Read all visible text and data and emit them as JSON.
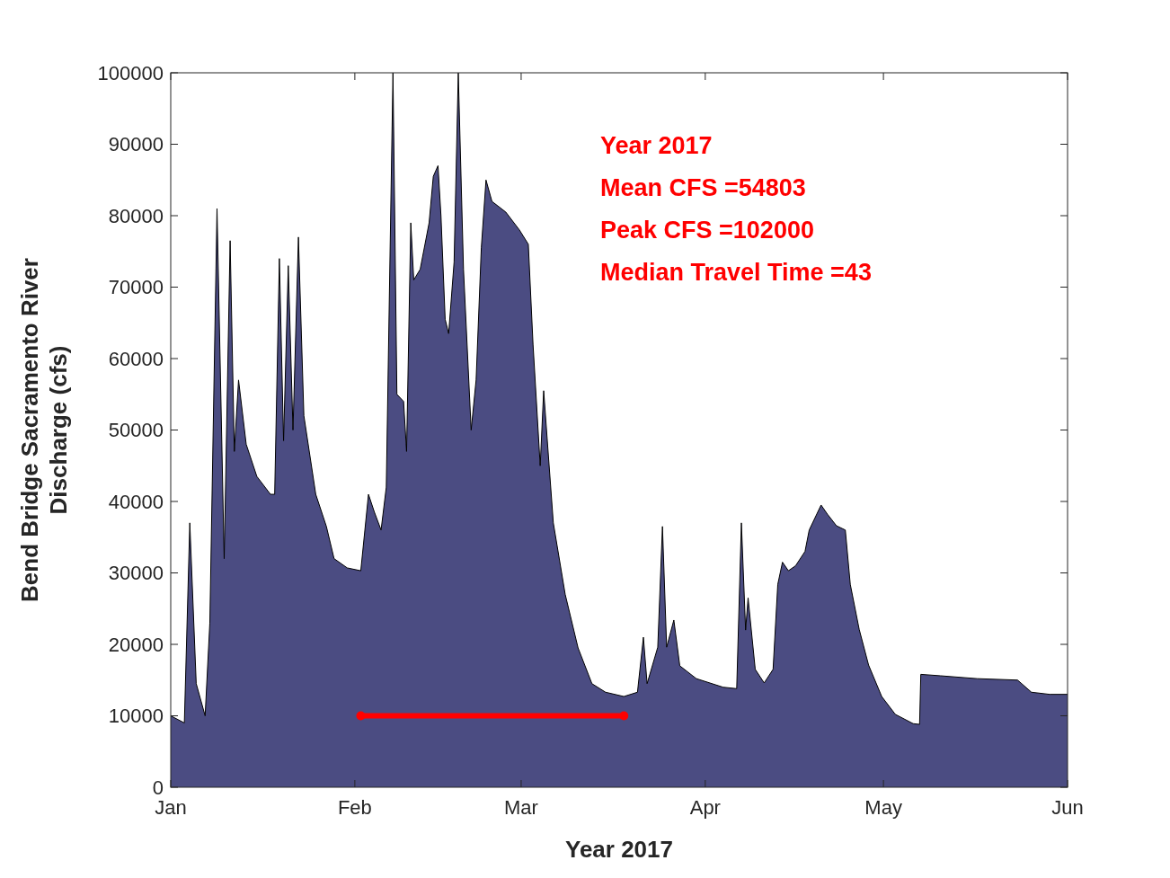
{
  "chart_data": {
    "type": "area",
    "xlabel": "Year 2017",
    "ylabel": "Bend Bridge Sacramento River\nDischarge (cfs)",
    "annotations": [
      "Year 2017",
      "Mean CFS =54803",
      "Peak CFS =102000",
      "Median Travel Time =43"
    ],
    "xlim": [
      "2017-01-01",
      "2017-06-01"
    ],
    "xticks": [
      {
        "value": "2017-01-01",
        "label": "Jan"
      },
      {
        "value": "2017-02-01",
        "label": "Feb"
      },
      {
        "value": "2017-03-01",
        "label": "Mar"
      },
      {
        "value": "2017-04-01",
        "label": "Apr"
      },
      {
        "value": "2017-05-01",
        "label": "May"
      },
      {
        "value": "2017-06-01",
        "label": "Jun"
      }
    ],
    "ylim": [
      0,
      100000
    ],
    "yticks": [
      0,
      10000,
      20000,
      30000,
      40000,
      50000,
      60000,
      70000,
      80000,
      90000,
      100000
    ],
    "series": [
      {
        "color": "#4b4c82",
        "x": [
          "2017-01-01",
          "2017-01-03T07:00",
          "2017-01-04T05:00",
          "2017-01-05T07:00",
          "2017-01-06T19:00",
          "2017-01-07T14:00",
          "2017-01-08T19:00",
          "2017-01-10",
          "2017-01-11",
          "2017-01-11T17:00",
          "2017-01-12T10:00",
          "2017-01-13T17:00",
          "2017-01-15T12:00",
          "2017-01-17T19:00",
          "2017-01-18T12:00",
          "2017-01-19T07:00",
          "2017-01-20",
          "2017-01-20T19:00",
          "2017-01-21T14:00",
          "2017-01-22T12:00",
          "2017-01-23T10:00",
          "2017-01-25T10:00",
          "2017-01-27T05:00",
          "2017-01-28T12:00",
          "2017-01-30T17:00",
          "2017-02-02",
          "2017-02-03T07:00",
          "2017-02-04T07:00",
          "2017-02-05T10:00",
          "2017-02-06T07:00",
          "2017-02-07T10:00",
          "2017-02-08T02:00",
          "2017-02-09T05:00",
          "2017-02-09T17:00",
          "2017-02-10T10:00",
          "2017-02-10T22:00",
          "2017-02-12",
          "2017-02-13T12:00",
          "2017-02-14T05:00",
          "2017-02-15",
          "2017-02-15T12:00",
          "2017-02-16T05:00",
          "2017-02-16T19:00",
          "2017-02-17T17:00",
          "2017-02-18T10:00",
          "2017-02-19T07:00",
          "2017-02-20T14:00",
          "2017-02-21T10:00",
          "2017-02-22T07:00",
          "2017-02-23T02:00",
          "2017-02-24T02:00",
          "2017-02-26T10:00",
          "2017-02-28T17:00",
          "2017-03-02T05:00",
          "2017-03-03",
          "2017-03-04T05:00",
          "2017-03-04T19:00",
          "2017-03-06T10:00",
          "2017-03-08T10:00",
          "2017-03-10T14:00",
          "2017-03-12T22:00",
          "2017-03-15T05:00",
          "2017-03-18T07:00",
          "2017-03-20T14:00",
          "2017-03-21T14:00",
          "2017-03-22T05:00",
          "2017-03-24",
          "2017-03-24T19:00",
          "2017-03-25T12:00",
          "2017-03-26T17:00",
          "2017-03-27T17:00",
          "2017-03-30T12:00",
          "2017-04-04",
          "2017-04-06T07:00",
          "2017-04-07T02:00",
          "2017-04-07T19:00",
          "2017-04-08T05:00",
          "2017-04-09T10:00",
          "2017-04-10T22:00",
          "2017-04-12T10:00",
          "2017-04-13T05:00",
          "2017-04-14",
          "2017-04-15",
          "2017-04-16T05:00",
          "2017-04-17T19:00",
          "2017-04-18T12:00",
          "2017-04-20T12:00",
          "2017-04-21T14:00",
          "2017-04-23T02:00",
          "2017-04-24T14:00",
          "2017-04-25T10:00",
          "2017-04-26T22:00",
          "2017-04-28T12:00",
          "2017-04-30T17:00",
          "2017-05-03",
          "2017-05-06",
          "2017-05-07T02:00",
          "2017-05-07T07:00",
          "2017-05-10T14:00",
          "2017-05-16T19:00",
          "2017-05-23T14:00",
          "2017-05-25T22:00",
          "2017-05-29",
          "2017-06-01"
        ],
        "values": [
          10000,
          9000,
          37000,
          14500,
          10000,
          23000,
          81000,
          32000,
          76500,
          47000,
          57000,
          48000,
          43500,
          41000,
          41000,
          74000,
          48500,
          73000,
          50000,
          77000,
          52000,
          41000,
          36500,
          32000,
          30700,
          30300,
          41000,
          38500,
          36000,
          42000,
          100000,
          55000,
          54000,
          47000,
          79000,
          71000,
          72500,
          79000,
          85500,
          87000,
          80000,
          65500,
          63500,
          73500,
          100000,
          72500,
          50000,
          57000,
          75500,
          85000,
          82000,
          80500,
          78000,
          76000,
          62000,
          45000,
          55500,
          37000,
          27000,
          19500,
          14500,
          13300,
          12700,
          13300,
          21000,
          14500,
          19600,
          36500,
          19600,
          23400,
          17000,
          15200,
          14000,
          13800,
          37000,
          22000,
          26500,
          16500,
          14600,
          16500,
          28400,
          31500,
          30300,
          31000,
          33000,
          36000,
          39500,
          38200,
          36600,
          36000,
          28400,
          22100,
          17100,
          12700,
          10200,
          8900,
          8800,
          15800,
          15600,
          15200,
          15000,
          13300,
          13000,
          13000
        ]
      },
      {
        "type": "line",
        "color": "#ff0000",
        "marker": "circle",
        "x": [
          "2017-02-02",
          "2017-03-18T07:00"
        ],
        "values": [
          10000,
          10000
        ]
      }
    ]
  }
}
